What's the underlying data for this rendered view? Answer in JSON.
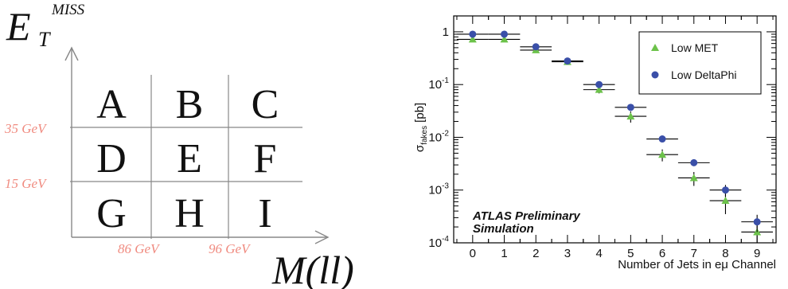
{
  "chart_data": [
    {
      "type": "table",
      "yaxis": {
        "label_main": "E",
        "label_sub": "T",
        "label_sup": "MISS"
      },
      "xaxis": {
        "label": "M(ll)"
      },
      "y_cuts": [
        "35 GeV",
        "15 GeV"
      ],
      "x_cuts": [
        "86 GeV",
        "96 GeV"
      ],
      "regions": [
        [
          "A",
          "B",
          "C"
        ],
        [
          "D",
          "E",
          "F"
        ],
        [
          "G",
          "H",
          "I"
        ]
      ],
      "colors": {
        "cut_label": "#f08b80",
        "grid": "#888888",
        "text": "#111111"
      }
    },
    {
      "type": "scatter",
      "ylabel": {
        "main": "σ",
        "sub": "fakes",
        "unit": "[pb]"
      },
      "xlabel": "Number of Jets in eμ Channel",
      "yscale": "log",
      "ylim": [
        0.0001,
        2
      ],
      "xlim": [
        -0.6,
        9.6
      ],
      "xticks": [
        "0",
        "1",
        "2",
        "3",
        "4",
        "5",
        "6",
        "7",
        "8",
        "9"
      ],
      "yticks": [
        {
          "value": 1,
          "base": "1",
          "exp": ""
        },
        {
          "value": 0.1,
          "base": "10",
          "exp": "-1"
        },
        {
          "value": 0.01,
          "base": "10",
          "exp": "-2"
        },
        {
          "value": 0.001,
          "base": "10",
          "exp": "-3"
        },
        {
          "value": 0.0001,
          "base": "10",
          "exp": "-4"
        }
      ],
      "x": [
        0,
        1,
        2,
        3,
        4,
        5,
        6,
        7,
        8,
        9
      ],
      "series": [
        {
          "name": "Low MET",
          "marker": "triangle",
          "color": "#6cc24a",
          "values": [
            0.72,
            0.72,
            0.45,
            0.27,
            0.08,
            0.025,
            0.0047,
            0.0017,
            0.00063,
            0.00016
          ],
          "err_low": [
            0.06,
            0.06,
            0.04,
            0.025,
            0.012,
            0.006,
            0.0012,
            0.0005,
            0.00028,
            8e-05
          ],
          "err_high": [
            0.06,
            0.06,
            0.04,
            0.025,
            0.012,
            0.006,
            0.0012,
            0.0005,
            0.00028,
            8e-05
          ]
        },
        {
          "name": "Low DeltaPhi",
          "marker": "circle",
          "color": "#3a4fa8",
          "values": [
            0.9,
            0.9,
            0.52,
            0.28,
            0.1,
            0.037,
            0.0093,
            0.0033,
            0.001,
            0.00025
          ],
          "err_low": [
            0.05,
            0.05,
            0.03,
            0.015,
            0.008,
            0.004,
            0.001,
            0.0004,
            0.00025,
            9e-05
          ],
          "err_high": [
            0.05,
            0.05,
            0.03,
            0.015,
            0.008,
            0.004,
            0.001,
            0.0004,
            0.00025,
            9e-05
          ]
        }
      ],
      "legend": {
        "position": "top-right"
      },
      "annotation": [
        "ATLAS Preliminary",
        "Simulation"
      ]
    }
  ]
}
